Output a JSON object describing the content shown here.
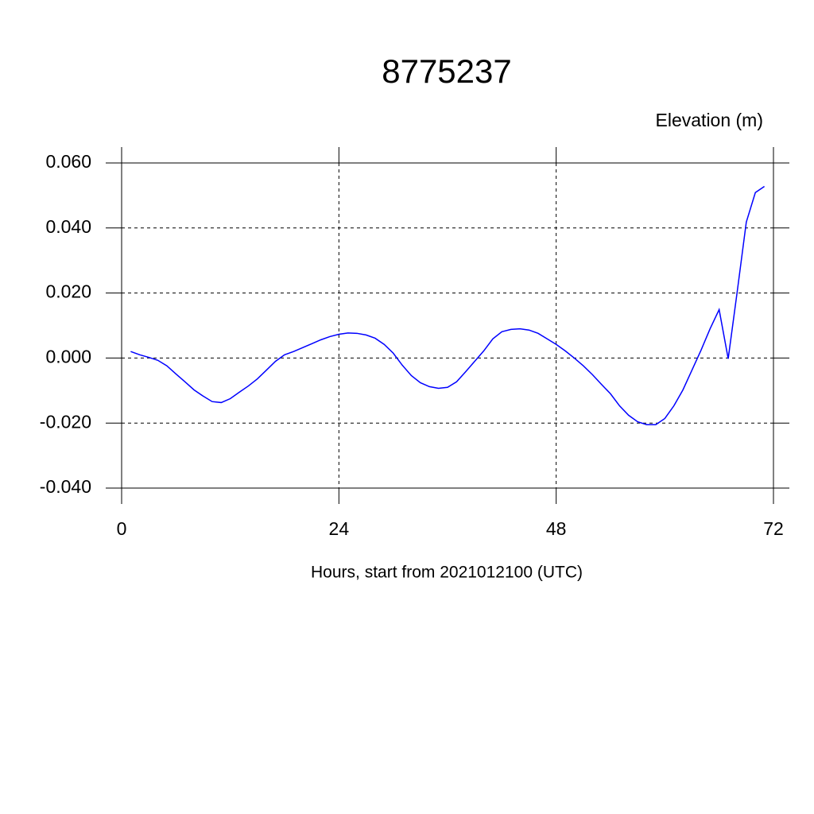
{
  "chart_data": {
    "type": "line",
    "title": "8775237",
    "subtitle": "Elevation (m)",
    "x_label": "Hours, start from 2021012100 (UTC)",
    "x": [
      1,
      2,
      3,
      4,
      5,
      6,
      7,
      8,
      9,
      10,
      11,
      12,
      13,
      14,
      15,
      16,
      17,
      18,
      19,
      20,
      21,
      22,
      23,
      24,
      25,
      26,
      27,
      28,
      29,
      30,
      31,
      32,
      33,
      34,
      35,
      36,
      37,
      38,
      39,
      40,
      41,
      42,
      43,
      44,
      45,
      46,
      47,
      48,
      49,
      50,
      51,
      52,
      53,
      54,
      55,
      56,
      57,
      58,
      59,
      60,
      61,
      62,
      63,
      64,
      65,
      66,
      67,
      68,
      69,
      70,
      71
    ],
    "values": [
      0.002,
      0.001,
      0.0002,
      -0.0007,
      -0.0024,
      -0.0049,
      -0.0073,
      -0.0098,
      -0.0117,
      -0.0134,
      -0.0137,
      -0.0125,
      -0.0105,
      -0.0086,
      -0.0064,
      -0.0037,
      -0.001,
      0.001,
      0.002,
      0.0032,
      0.0044,
      0.0056,
      0.0066,
      0.0073,
      0.0077,
      0.0076,
      0.0071,
      0.0061,
      0.0042,
      0.0015,
      -0.0022,
      -0.0054,
      -0.0076,
      -0.0088,
      -0.0093,
      -0.009,
      -0.0073,
      -0.0042,
      -0.001,
      0.0022,
      0.0059,
      0.0081,
      0.0088,
      0.009,
      0.0086,
      0.0076,
      0.0059,
      0.0042,
      0.0022,
      0.0,
      -0.0024,
      -0.0051,
      -0.0081,
      -0.011,
      -0.0147,
      -0.0176,
      -0.0196,
      -0.0205,
      -0.0205,
      -0.0186,
      -0.0147,
      -0.0098,
      -0.0037,
      0.0024,
      0.009,
      0.0149,
      -0.0002,
      0.0205,
      0.0418,
      0.0509,
      0.0528
    ],
    "color": "#0000ff",
    "xlim": [
      0,
      72
    ],
    "xticks": [
      0,
      24,
      48,
      72
    ],
    "ylim": [
      -0.04,
      0.06
    ],
    "yticks": [
      {
        "value": -0.04,
        "label": "-0.040"
      },
      {
        "value": -0.02,
        "label": "-0.020"
      },
      {
        "value": 0,
        "label": "0.000"
      },
      {
        "value": 0.02,
        "label": "0.020"
      },
      {
        "value": 0.04,
        "label": "0.040"
      },
      {
        "value": 0.06,
        "label": "0.060"
      }
    ],
    "grid": true
  }
}
